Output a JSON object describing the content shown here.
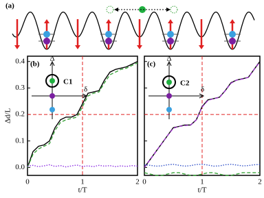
{
  "panel_a": {
    "label": "(a)"
  },
  "chart_data": [
    {
      "type": "line",
      "label": "(b)",
      "ylabel": "Δd/L",
      "xlabel": "t/T",
      "inset_label": "C1",
      "inset_v": "Δ",
      "inset_h": "δ",
      "xlim": [
        0,
        2
      ],
      "ylim": [
        -0.03,
        0.42
      ],
      "xticks": [
        0,
        1,
        2
      ],
      "yticks": [
        {
          "value": 0,
          "label": "0.0"
        },
        {
          "value": 0.1,
          "label": "0.1"
        },
        {
          "value": 0.2,
          "label": "0.2"
        },
        {
          "value": 0.3,
          "label": "0.3"
        },
        {
          "value": 0.4,
          "label": "0.4"
        }
      ],
      "vline": 1,
      "hline": 0.2,
      "show_yticklabels": true,
      "x": [
        0,
        0.1,
        0.2,
        0.3,
        0.4,
        0.5,
        0.6,
        0.7,
        0.8,
        0.9,
        1.0,
        1.1,
        1.2,
        1.3,
        1.4,
        1.5,
        1.6,
        1.7,
        1.8,
        1.9,
        2.0
      ],
      "series": [
        {
          "color": "#000000",
          "dash": "solid",
          "values": [
            0,
            0.06,
            0.08,
            0.085,
            0.1,
            0.15,
            0.18,
            0.19,
            0.19,
            0.2,
            0.24,
            0.28,
            0.285,
            0.29,
            0.33,
            0.36,
            0.37,
            0.375,
            0.38,
            0.39,
            0.4
          ]
        },
        {
          "color": "#3aa33a",
          "dash": "dashed",
          "values": [
            0,
            0.05,
            0.07,
            0.08,
            0.09,
            0.14,
            0.17,
            0.18,
            0.185,
            0.19,
            0.23,
            0.27,
            0.28,
            0.285,
            0.32,
            0.35,
            0.36,
            0.37,
            0.375,
            0.385,
            0.395
          ]
        },
        {
          "color": "#8a2be2",
          "dash": "dotted",
          "values": [
            0.005,
            0.008,
            0.003,
            0.006,
            0.01,
            0.004,
            0.007,
            0.002,
            0.006,
            0.009,
            0.004,
            0.006,
            0.003,
            0.008,
            0.005,
            0.007,
            0.003,
            0.006,
            0.004,
            0.007,
            0.005
          ]
        }
      ]
    },
    {
      "type": "line",
      "label": "(c)",
      "xlabel": "t/T",
      "inset_label": "C2",
      "inset_v": "Δ",
      "inset_h": "δ",
      "xlim": [
        0,
        2
      ],
      "ylim": [
        -0.03,
        0.42
      ],
      "xticks": [
        0,
        1,
        2
      ],
      "yticks": [
        0,
        0.1,
        0.2,
        0.3,
        0.4
      ],
      "vline": 1,
      "hline": 0.2,
      "show_yticklabels": false,
      "x": [
        0,
        0.1,
        0.2,
        0.3,
        0.4,
        0.5,
        0.6,
        0.7,
        0.8,
        0.9,
        1.0,
        1.1,
        1.2,
        1.3,
        1.4,
        1.5,
        1.6,
        1.7,
        1.8,
        1.9,
        2.0
      ],
      "series": [
        {
          "color": "#000000",
          "dash": "solid",
          "values": [
            0,
            0.03,
            0.06,
            0.09,
            0.12,
            0.15,
            0.155,
            0.16,
            0.16,
            0.18,
            0.23,
            0.255,
            0.26,
            0.265,
            0.29,
            0.32,
            0.33,
            0.335,
            0.34,
            0.37,
            0.4
          ]
        },
        {
          "color": "#9b30c8",
          "dash": "dashed",
          "values": [
            0,
            0.03,
            0.06,
            0.09,
            0.12,
            0.148,
            0.155,
            0.158,
            0.16,
            0.18,
            0.228,
            0.253,
            0.26,
            0.264,
            0.29,
            0.318,
            0.33,
            0.334,
            0.34,
            0.37,
            0.398
          ]
        },
        {
          "color": "#3aa33a",
          "dash": "dashed",
          "values": [
            -0.02,
            -0.025,
            -0.03,
            -0.03,
            -0.025,
            -0.02,
            -0.02,
            -0.025,
            -0.03,
            -0.03,
            -0.025,
            -0.02,
            -0.02,
            -0.025,
            -0.03,
            -0.03,
            -0.025,
            -0.02,
            -0.02,
            -0.02,
            -0.02
          ]
        },
        {
          "color": "#3050c8",
          "dash": "dotted",
          "values": [
            0.01,
            0.008,
            0.005,
            0.006,
            0.01,
            0.012,
            0.008,
            0.005,
            0.007,
            0.011,
            0.012,
            0.009,
            0.005,
            0.006,
            0.01,
            0.012,
            0.009,
            0.006,
            0.007,
            0.01,
            0.011
          ]
        }
      ]
    }
  ]
}
